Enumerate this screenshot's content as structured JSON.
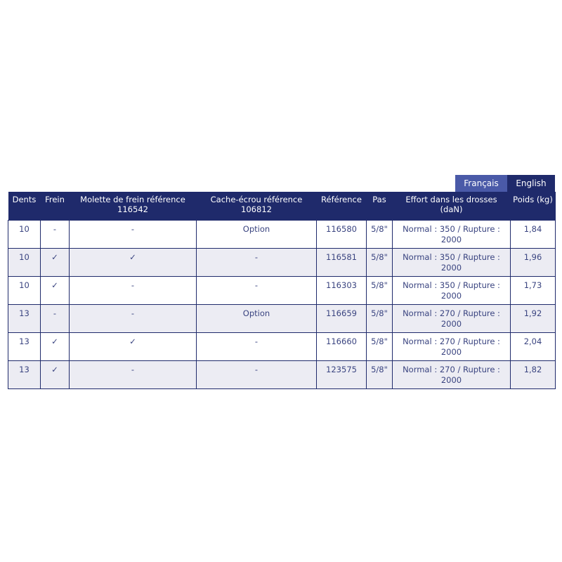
{
  "language_tabs": [
    {
      "label": "Français",
      "active": false
    },
    {
      "label": "English",
      "active": true
    }
  ],
  "table": {
    "headers": [
      "Dents",
      "Frein",
      "Molette de frein référence 116542",
      "Cache-écrou référence 106812",
      "Référence",
      "Pas",
      "Effort dans les drosses (daN)",
      "Poids (kg)"
    ],
    "rows": [
      [
        "10",
        "-",
        "-",
        "Option",
        "116580",
        "5/8\"",
        "Normal : 350 / Rupture : 2000",
        "1,84"
      ],
      [
        "10",
        "✓",
        "✓",
        "-",
        "116581",
        "5/8\"",
        "Normal : 350 / Rupture : 2000",
        "1,96"
      ],
      [
        "10",
        "✓",
        "-",
        "-",
        "116303",
        "5/8\"",
        "Normal : 350 / Rupture : 2000",
        "1,73"
      ],
      [
        "13",
        "-",
        "-",
        "Option",
        "116659",
        "5/8\"",
        "Normal : 270 / Rupture : 2000",
        "1,92"
      ],
      [
        "13",
        "✓",
        "✓",
        "-",
        "116660",
        "5/8\"",
        "Normal : 270 / Rupture : 2000",
        "2,04"
      ],
      [
        "13",
        "✓",
        "-",
        "-",
        "123575",
        "5/8\"",
        "Normal : 270 / Rupture : 2000",
        "1,82"
      ]
    ]
  },
  "colors": {
    "header": "#1f2a6b",
    "tab_inactive": "#4a5aa8",
    "row_alt": "#ececf3"
  }
}
